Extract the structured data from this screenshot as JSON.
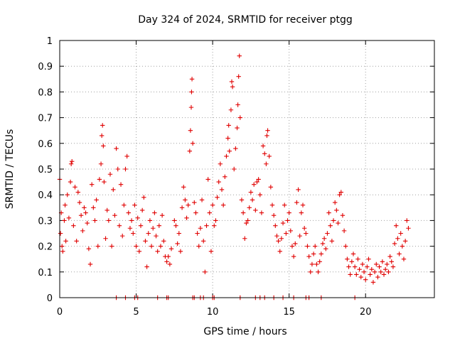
{
  "chart_data": {
    "type": "scatter",
    "title": "Day 324 of 2024, SRMTID for receiver ptgg",
    "xlabel": "GPS time / hours",
    "ylabel": "SRMTID / TECUs",
    "xlim": [
      0,
      24.5
    ],
    "ylim": [
      0,
      1
    ],
    "x_ticks": [
      0,
      5,
      10,
      15,
      20
    ],
    "x_tick_labels": [
      "0",
      "5",
      "10",
      "15",
      "20"
    ],
    "y_ticks": [
      0,
      0.1,
      0.2,
      0.3,
      0.4,
      0.5,
      0.6,
      0.7,
      0.8,
      0.9,
      1
    ],
    "y_tick_labels": [
      "0",
      "0.1",
      "0.2",
      "0.3",
      "0.4",
      "0.5",
      "0.6",
      "0.7",
      "0.8",
      "0.9",
      "1"
    ],
    "grid": true,
    "marker": "+",
    "color": "#e00000",
    "series": [
      {
        "name": "SRMTID",
        "points": [
          [
            0.0,
            0.46
          ],
          [
            0.05,
            0.25
          ],
          [
            0.1,
            0.33
          ],
          [
            0.15,
            0.2
          ],
          [
            0.2,
            0.18
          ],
          [
            0.3,
            0.3
          ],
          [
            0.35,
            0.36
          ],
          [
            0.4,
            0.22
          ],
          [
            0.5,
            0.4
          ],
          [
            0.6,
            0.31
          ],
          [
            0.7,
            0.45
          ],
          [
            0.75,
            0.52
          ],
          [
            0.8,
            0.53
          ],
          [
            0.9,
            0.28
          ],
          [
            1.0,
            0.43
          ],
          [
            1.1,
            0.22
          ],
          [
            1.2,
            0.41
          ],
          [
            1.3,
            0.37
          ],
          [
            1.4,
            0.32
          ],
          [
            1.5,
            0.26
          ],
          [
            1.6,
            0.35
          ],
          [
            1.7,
            0.33
          ],
          [
            1.8,
            0.29
          ],
          [
            1.9,
            0.19
          ],
          [
            2.0,
            0.13
          ],
          [
            2.1,
            0.44
          ],
          [
            2.2,
            0.35
          ],
          [
            2.3,
            0.3
          ],
          [
            2.4,
            0.38
          ],
          [
            2.5,
            0.2
          ],
          [
            2.6,
            0.46
          ],
          [
            2.7,
            0.52
          ],
          [
            2.75,
            0.63
          ],
          [
            2.8,
            0.67
          ],
          [
            2.85,
            0.59
          ],
          [
            2.9,
            0.45
          ],
          [
            3.0,
            0.23
          ],
          [
            3.1,
            0.34
          ],
          [
            3.2,
            0.3
          ],
          [
            3.3,
            0.48
          ],
          [
            3.4,
            0.2
          ],
          [
            3.5,
            0.42
          ],
          [
            3.6,
            0.32
          ],
          [
            3.7,
            0.58
          ],
          [
            3.8,
            0.5
          ],
          [
            3.9,
            0.28
          ],
          [
            4.0,
            0.44
          ],
          [
            4.1,
            0.24
          ],
          [
            4.2,
            0.36
          ],
          [
            4.3,
            0.5
          ],
          [
            4.4,
            0.55
          ],
          [
            4.5,
            0.33
          ],
          [
            4.6,
            0.27
          ],
          [
            4.7,
            0.3
          ],
          [
            4.8,
            0.25
          ],
          [
            4.9,
            0.36
          ],
          [
            5.0,
            0.2
          ],
          [
            5.1,
            0.31
          ],
          [
            5.2,
            0.18
          ],
          [
            5.3,
            0.28
          ],
          [
            5.4,
            0.34
          ],
          [
            5.5,
            0.39
          ],
          [
            5.6,
            0.22
          ],
          [
            5.7,
            0.12
          ],
          [
            5.8,
            0.25
          ],
          [
            5.9,
            0.3
          ],
          [
            6.0,
            0.2
          ],
          [
            6.1,
            0.27
          ],
          [
            6.2,
            0.33
          ],
          [
            6.3,
            0.24
          ],
          [
            6.4,
            0.18
          ],
          [
            6.5,
            0.28
          ],
          [
            6.6,
            0.2
          ],
          [
            6.7,
            0.32
          ],
          [
            6.8,
            0.22
          ],
          [
            6.9,
            0.16
          ],
          [
            7.0,
            0.14
          ],
          [
            7.1,
            0.16
          ],
          [
            7.2,
            0.13
          ],
          [
            7.3,
            0.19
          ],
          [
            7.5,
            0.3
          ],
          [
            7.6,
            0.28
          ],
          [
            7.7,
            0.21
          ],
          [
            7.8,
            0.25
          ],
          [
            7.9,
            0.18
          ],
          [
            8.0,
            0.35
          ],
          [
            8.1,
            0.43
          ],
          [
            8.2,
            0.38
          ],
          [
            8.3,
            0.31
          ],
          [
            8.4,
            0.36
          ],
          [
            8.5,
            0.57
          ],
          [
            8.55,
            0.65
          ],
          [
            8.6,
            0.74
          ],
          [
            8.62,
            0.8
          ],
          [
            8.65,
            0.85
          ],
          [
            8.7,
            0.6
          ],
          [
            8.8,
            0.37
          ],
          [
            8.9,
            0.33
          ],
          [
            9.0,
            0.25
          ],
          [
            9.1,
            0.2
          ],
          [
            9.2,
            0.27
          ],
          [
            9.3,
            0.38
          ],
          [
            9.4,
            0.22
          ],
          [
            9.5,
            0.1
          ],
          [
            9.6,
            0.28
          ],
          [
            9.7,
            0.46
          ],
          [
            9.8,
            0.33
          ],
          [
            9.9,
            0.18
          ],
          [
            10.0,
            0.36
          ],
          [
            10.1,
            0.28
          ],
          [
            10.2,
            0.3
          ],
          [
            10.3,
            0.39
          ],
          [
            10.4,
            0.45
          ],
          [
            10.5,
            0.52
          ],
          [
            10.6,
            0.42
          ],
          [
            10.7,
            0.36
          ],
          [
            10.8,
            0.47
          ],
          [
            10.9,
            0.55
          ],
          [
            11.0,
            0.62
          ],
          [
            11.05,
            0.67
          ],
          [
            11.1,
            0.57
          ],
          [
            11.2,
            0.73
          ],
          [
            11.25,
            0.84
          ],
          [
            11.3,
            0.82
          ],
          [
            11.4,
            0.5
          ],
          [
            11.5,
            0.58
          ],
          [
            11.6,
            0.66
          ],
          [
            11.65,
            0.75
          ],
          [
            11.7,
            0.86
          ],
          [
            11.75,
            0.94
          ],
          [
            11.8,
            0.7
          ],
          [
            11.9,
            0.38
          ],
          [
            12.0,
            0.33
          ],
          [
            12.1,
            0.23
          ],
          [
            12.2,
            0.29
          ],
          [
            12.3,
            0.3
          ],
          [
            12.4,
            0.35
          ],
          [
            12.5,
            0.41
          ],
          [
            12.6,
            0.38
          ],
          [
            12.7,
            0.44
          ],
          [
            12.8,
            0.34
          ],
          [
            12.9,
            0.45
          ],
          [
            13.0,
            0.46
          ],
          [
            13.1,
            0.4
          ],
          [
            13.2,
            0.33
          ],
          [
            13.3,
            0.59
          ],
          [
            13.4,
            0.56
          ],
          [
            13.5,
            0.52
          ],
          [
            13.55,
            0.63
          ],
          [
            13.6,
            0.65
          ],
          [
            13.7,
            0.55
          ],
          [
            13.8,
            0.43
          ],
          [
            13.9,
            0.36
          ],
          [
            14.0,
            0.32
          ],
          [
            14.1,
            0.28
          ],
          [
            14.2,
            0.24
          ],
          [
            14.3,
            0.22
          ],
          [
            14.4,
            0.18
          ],
          [
            14.5,
            0.23
          ],
          [
            14.6,
            0.29
          ],
          [
            14.7,
            0.36
          ],
          [
            14.8,
            0.25
          ],
          [
            14.9,
            0.3
          ],
          [
            15.0,
            0.33
          ],
          [
            15.1,
            0.26
          ],
          [
            15.2,
            0.2
          ],
          [
            15.3,
            0.16
          ],
          [
            15.4,
            0.21
          ],
          [
            15.5,
            0.37
          ],
          [
            15.6,
            0.42
          ],
          [
            15.7,
            0.24
          ],
          [
            15.8,
            0.33
          ],
          [
            15.9,
            0.36
          ],
          [
            16.0,
            0.27
          ],
          [
            16.1,
            0.25
          ],
          [
            16.2,
            0.2
          ],
          [
            16.3,
            0.16
          ],
          [
            16.4,
            0.1
          ],
          [
            16.5,
            0.13
          ],
          [
            16.6,
            0.17
          ],
          [
            16.7,
            0.2
          ],
          [
            16.8,
            0.13
          ],
          [
            16.9,
            0.1
          ],
          [
            17.0,
            0.14
          ],
          [
            17.1,
            0.17
          ],
          [
            17.2,
            0.21
          ],
          [
            17.3,
            0.23
          ],
          [
            17.4,
            0.19
          ],
          [
            17.5,
            0.25
          ],
          [
            17.6,
            0.33
          ],
          [
            17.7,
            0.28
          ],
          [
            17.8,
            0.22
          ],
          [
            17.9,
            0.3
          ],
          [
            18.0,
            0.37
          ],
          [
            18.1,
            0.34
          ],
          [
            18.2,
            0.29
          ],
          [
            18.3,
            0.4
          ],
          [
            18.4,
            0.41
          ],
          [
            18.5,
            0.32
          ],
          [
            18.6,
            0.26
          ],
          [
            18.7,
            0.2
          ],
          [
            18.8,
            0.15
          ],
          [
            18.9,
            0.12
          ],
          [
            19.0,
            0.09
          ],
          [
            19.1,
            0.14
          ],
          [
            19.2,
            0.17
          ],
          [
            19.3,
            0.12
          ],
          [
            19.4,
            0.09
          ],
          [
            19.5,
            0.15
          ],
          [
            19.6,
            0.11
          ],
          [
            19.7,
            0.08
          ],
          [
            19.8,
            0.13
          ],
          [
            19.9,
            0.1
          ],
          [
            20.0,
            0.07
          ],
          [
            20.1,
            0.12
          ],
          [
            20.2,
            0.15
          ],
          [
            20.3,
            0.09
          ],
          [
            20.4,
            0.11
          ],
          [
            20.5,
            0.06
          ],
          [
            20.6,
            0.1
          ],
          [
            20.7,
            0.13
          ],
          [
            20.8,
            0.08
          ],
          [
            20.9,
            0.12
          ],
          [
            21.0,
            0.1
          ],
          [
            21.1,
            0.14
          ],
          [
            21.2,
            0.09
          ],
          [
            21.3,
            0.11
          ],
          [
            21.4,
            0.13
          ],
          [
            21.5,
            0.1
          ],
          [
            21.6,
            0.16
          ],
          [
            21.7,
            0.14
          ],
          [
            21.8,
            0.12
          ],
          [
            21.9,
            0.21
          ],
          [
            22.0,
            0.28
          ],
          [
            22.1,
            0.23
          ],
          [
            22.2,
            0.17
          ],
          [
            22.3,
            0.25
          ],
          [
            22.4,
            0.2
          ],
          [
            22.5,
            0.15
          ],
          [
            22.6,
            0.22
          ],
          [
            22.7,
            0.3
          ],
          [
            22.8,
            0.27
          ],
          [
            3.7,
            0.0
          ],
          [
            4.3,
            0.0
          ],
          [
            4.9,
            0.0
          ],
          [
            5.1,
            0.0
          ],
          [
            6.4,
            0.0
          ],
          [
            7.0,
            0.0
          ],
          [
            7.1,
            0.0
          ],
          [
            8.7,
            0.0
          ],
          [
            8.8,
            0.0
          ],
          [
            9.2,
            0.0
          ],
          [
            9.4,
            0.0
          ],
          [
            10.0,
            0.0
          ],
          [
            10.1,
            0.0
          ],
          [
            11.8,
            0.0
          ],
          [
            12.8,
            0.0
          ],
          [
            13.1,
            0.0
          ],
          [
            13.4,
            0.0
          ],
          [
            14.0,
            0.0
          ],
          [
            14.6,
            0.0
          ],
          [
            15.3,
            0.0
          ],
          [
            16.1,
            0.0
          ],
          [
            16.3,
            0.0
          ],
          [
            17.1,
            0.0
          ],
          [
            19.3,
            0.0
          ]
        ]
      }
    ]
  }
}
